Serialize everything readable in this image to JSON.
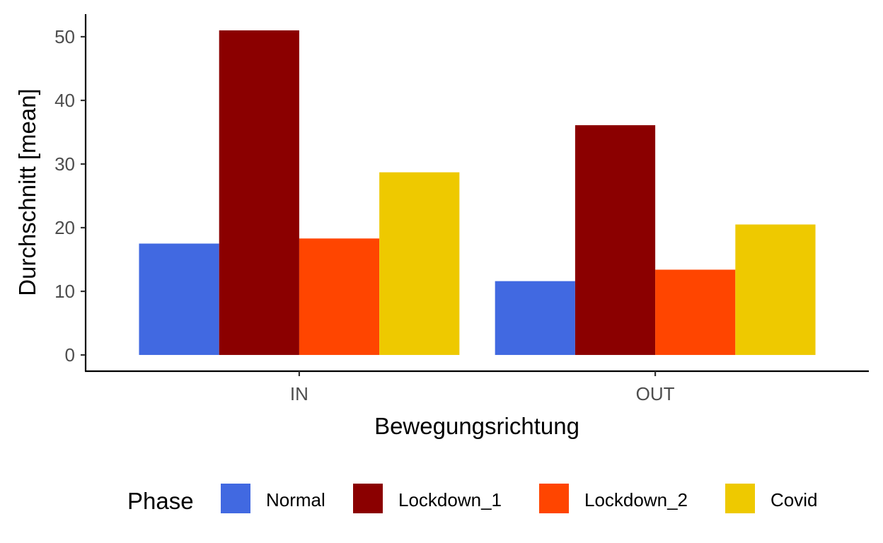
{
  "chart_data": {
    "type": "bar",
    "categories": [
      "IN",
      "OUT"
    ],
    "series": [
      {
        "name": "Normal",
        "values": [
          17.5,
          11.6
        ],
        "color": "#4169E1"
      },
      {
        "name": "Lockdown_1",
        "values": [
          51.0,
          36.1
        ],
        "color": "#8B0000"
      },
      {
        "name": "Lockdown_2",
        "values": [
          18.3,
          13.4
        ],
        "color": "#FF4500"
      },
      {
        "name": "Covid",
        "values": [
          28.7,
          20.5
        ],
        "color": "#EEC900"
      }
    ],
    "xlabel": "Bewegungsrichtung",
    "ylabel": "Durchschnitt [mean]",
    "yticks": [
      0,
      10,
      20,
      30,
      40,
      50
    ],
    "ylim": [
      -2.55,
      53.55
    ],
    "legend_title": "Phase",
    "legend_position": "bottom",
    "grid": false
  }
}
